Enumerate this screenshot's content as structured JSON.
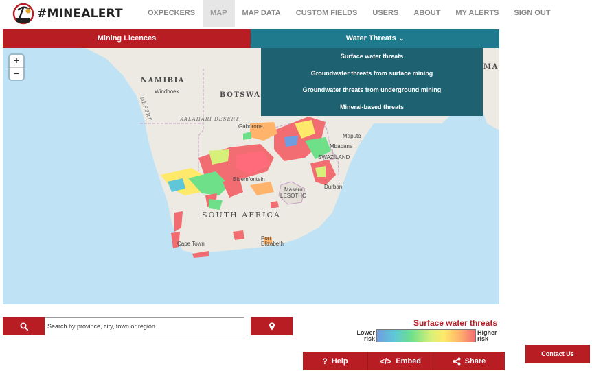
{
  "brand": {
    "name": "#MINEALERT"
  },
  "nav": [
    {
      "label": "OXPECKERS"
    },
    {
      "label": "MAP",
      "active": true
    },
    {
      "label": "MAP DATA"
    },
    {
      "label": "CUSTOM FIELDS"
    },
    {
      "label": "USERS"
    },
    {
      "label": "ABOUT"
    },
    {
      "label": "MY ALERTS"
    },
    {
      "label": "SIGN OUT"
    }
  ],
  "tabs": {
    "licences": "Mining Licences",
    "water": "Water Threats"
  },
  "dropdown": {
    "items": [
      "Surface water threats",
      "Groundwater threats from surface mining",
      "Groundwater threats from underground mining",
      "Mineral-based threats"
    ]
  },
  "map": {
    "zoom_in": "+",
    "zoom_out": "−",
    "labels": {
      "namibia": "NAMIBIA",
      "windhoek": "Windhoek",
      "botswana": "BOTSWAN",
      "kalahari": "KALAHARI DESERT",
      "desert_side": "DESERT",
      "gaborone": "Gaborone",
      "maputo": "Maputo",
      "mbabane": "Mbabane",
      "swaziland": "SWAZILAND",
      "bloemfontein": "Bloemfontein",
      "maseru": "Maseru",
      "lesotho": "LESOTHO",
      "durban": "Durban",
      "south_africa": "SOUTH AFRICA",
      "cape_town": "Cape Town",
      "port": "Port",
      "elizabeth": "Elizabeth",
      "mada": "MADA"
    }
  },
  "search": {
    "placeholder": "Search by province, city, town or region"
  },
  "legend": {
    "title": "Surface water threats",
    "low_line1": "Lower",
    "low_line2": "risk",
    "high_line1": "Higher",
    "high_line2": "risk",
    "colors": [
      "#6f9ee0",
      "#5fc7d8",
      "#6fe08a",
      "#d7f07a",
      "#ffe96a",
      "#ffb36b",
      "#f26d72"
    ]
  },
  "actions": {
    "help": "Help",
    "embed": "Embed",
    "share": "Share"
  },
  "contact": "Contact Us",
  "colors": {
    "brand_red": "#b81d24",
    "teal": "#1f7a8e",
    "dropdown_teal": "#1e6272",
    "ocean": "#bfe3f4",
    "land": "#eceae2"
  }
}
